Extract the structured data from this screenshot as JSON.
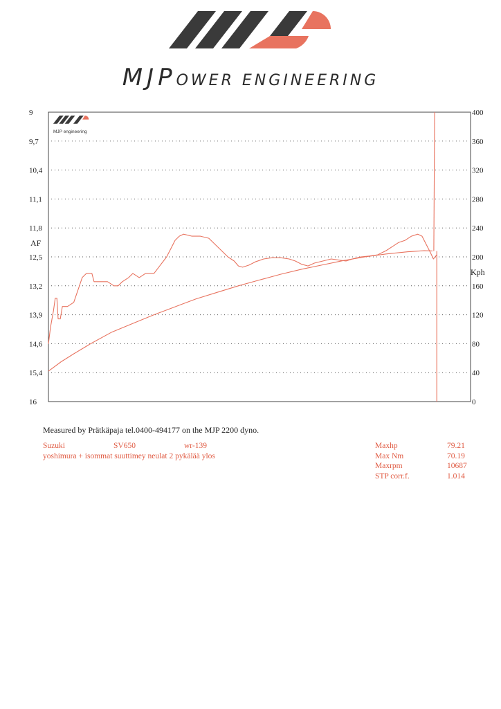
{
  "brand": {
    "logo_icon": "mjp-stripes-logo",
    "first_letters": "MJP",
    "rest_word": "OWER ENGINEERING"
  },
  "chart_data": {
    "type": "line",
    "inset_logo_text": "MJP engineering",
    "left_axis": {
      "label": "AF",
      "ticks": [
        "9",
        "9,7",
        "10,4",
        "11,1",
        "11,8",
        "12,5",
        "13,2",
        "13,9",
        "14,6",
        "15,4",
        "16"
      ],
      "range": [
        9,
        16
      ],
      "inverted": true
    },
    "right_axis": {
      "label": "Kph",
      "ticks": [
        "400",
        "360",
        "320",
        "280",
        "240",
        "200",
        "160",
        "120",
        "80",
        "40",
        "0"
      ],
      "range": [
        0,
        400
      ]
    },
    "x_range": [
      0,
      100
    ],
    "grid": true,
    "colors": {
      "series": "#e8735f",
      "frame": "#444444",
      "grid": "#555555"
    },
    "series": [
      {
        "axis": "left",
        "points": [
          [
            0,
            14.6
          ],
          [
            0.5,
            14.2
          ],
          [
            1.2,
            13.8
          ],
          [
            1.6,
            13.5
          ],
          [
            2.0,
            13.5
          ],
          [
            2.3,
            14.0
          ],
          [
            2.8,
            14.0
          ],
          [
            3.3,
            13.7
          ],
          [
            4.5,
            13.7
          ],
          [
            6.0,
            13.6
          ],
          [
            7.0,
            13.3
          ],
          [
            8.0,
            13.0
          ],
          [
            9.0,
            12.9
          ],
          [
            10.3,
            12.9
          ],
          [
            10.8,
            13.1
          ],
          [
            12.5,
            13.1
          ],
          [
            14.0,
            13.1
          ],
          [
            15.5,
            13.2
          ],
          [
            16.5,
            13.2
          ],
          [
            17.5,
            13.1
          ],
          [
            19.0,
            13.0
          ],
          [
            20.0,
            12.9
          ],
          [
            21.5,
            13.0
          ],
          [
            23.0,
            12.9
          ],
          [
            25.0,
            12.9
          ],
          [
            26.5,
            12.7
          ],
          [
            28.0,
            12.5
          ],
          [
            29.0,
            12.3
          ],
          [
            30.0,
            12.1
          ],
          [
            31.0,
            12.0
          ],
          [
            32.0,
            11.95
          ],
          [
            34.0,
            12.0
          ],
          [
            36.0,
            12.0
          ],
          [
            38.0,
            12.05
          ],
          [
            39.5,
            12.2
          ],
          [
            41.0,
            12.35
          ],
          [
            42.5,
            12.5
          ],
          [
            44.0,
            12.6
          ],
          [
            45.0,
            12.72
          ],
          [
            46.0,
            12.75
          ],
          [
            47.5,
            12.7
          ],
          [
            49.0,
            12.62
          ],
          [
            51.0,
            12.55
          ],
          [
            53.0,
            12.52
          ],
          [
            55.0,
            12.52
          ],
          [
            57.0,
            12.55
          ],
          [
            58.5,
            12.6
          ],
          [
            60.0,
            12.68
          ],
          [
            61.5,
            12.72
          ],
          [
            63.0,
            12.65
          ],
          [
            65.0,
            12.6
          ],
          [
            67.0,
            12.55
          ],
          [
            69.0,
            12.58
          ],
          [
            70.5,
            12.6
          ],
          [
            72.0,
            12.55
          ],
          [
            74.0,
            12.5
          ],
          [
            76.0,
            12.48
          ],
          [
            78.0,
            12.45
          ],
          [
            80.0,
            12.35
          ],
          [
            81.5,
            12.25
          ],
          [
            83.0,
            12.15
          ],
          [
            84.5,
            12.1
          ],
          [
            86.0,
            12.0
          ],
          [
            87.5,
            11.95
          ],
          [
            88.5,
            12.0
          ],
          [
            89.5,
            12.2
          ],
          [
            90.5,
            12.4
          ],
          [
            91.2,
            12.55
          ],
          [
            91.6,
            12.5
          ],
          [
            92.0,
            12.45
          ]
        ]
      },
      {
        "axis": "right",
        "points": [
          [
            0,
            42
          ],
          [
            3,
            55
          ],
          [
            6,
            66
          ],
          [
            10,
            80
          ],
          [
            15,
            96
          ],
          [
            20,
            108
          ],
          [
            25,
            120
          ],
          [
            30,
            131
          ],
          [
            35,
            142
          ],
          [
            40,
            151
          ],
          [
            45,
            160
          ],
          [
            50,
            168
          ],
          [
            55,
            176
          ],
          [
            60,
            183
          ],
          [
            65,
            189
          ],
          [
            70,
            195
          ],
          [
            75,
            200
          ],
          [
            80,
            204
          ],
          [
            85,
            207
          ],
          [
            89,
            208.5
          ],
          [
            91,
            208.2
          ]
        ]
      },
      {
        "axis": "right",
        "points": [
          [
            91.3,
            208
          ],
          [
            91.5,
            400
          ]
        ]
      },
      {
        "axis": "right",
        "points": [
          [
            92.0,
            208
          ],
          [
            92.0,
            0
          ]
        ]
      }
    ]
  },
  "measured_text": "Measured by Prätkäpaja tel.0400-494177 on the MJP 2200 dyno.",
  "vehicle": {
    "make": "Suzuki",
    "model": "SV650",
    "code": "wr-139",
    "notes": "yoshimura + isommat suuttimey neulat 2 pykälää ylos"
  },
  "results": [
    {
      "label": "Maxhp",
      "value": "79.21"
    },
    {
      "label": "Max Nm",
      "value": "70.19"
    },
    {
      "label": "Maxrpm",
      "value": "10687"
    },
    {
      "label": "STP corr.f.",
      "value": "1.014"
    }
  ]
}
